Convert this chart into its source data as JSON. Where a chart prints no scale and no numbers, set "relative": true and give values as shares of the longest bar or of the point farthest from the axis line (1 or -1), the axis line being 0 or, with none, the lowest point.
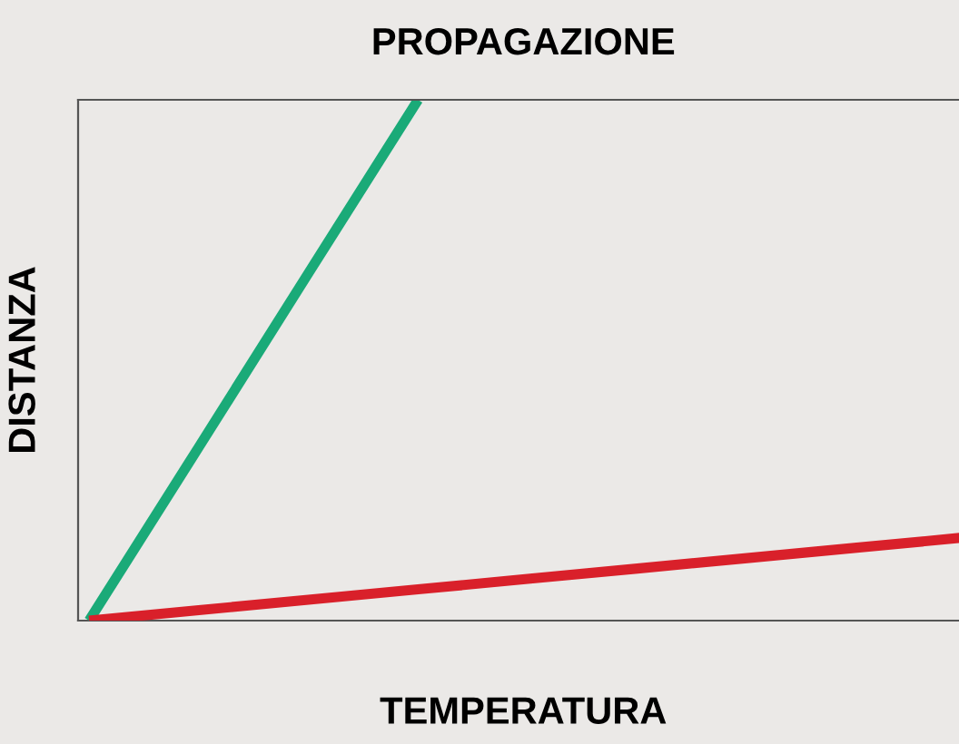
{
  "chart_data": {
    "type": "line",
    "title": "PROPAGAZIONE",
    "xlabel": "TEMPERATURA",
    "ylabel": "DISTANZA",
    "relative": true,
    "categories": [
      null,
      null,
      null,
      null,
      null,
      null,
      null,
      null,
      null
    ],
    "series": [
      {
        "color": "#1aaa78",
        "values": [
          0,
          0.333,
          0.667,
          1,
          null,
          null,
          null,
          null,
          null
        ]
      },
      {
        "color": "#d9202a",
        "values": [
          0,
          0.02,
          0.04,
          0.06,
          0.08,
          0.1,
          0.12,
          0.14,
          0.16
        ]
      }
    ],
    "marker": "none",
    "line_style": "solid",
    "tick_labels": false
  }
}
